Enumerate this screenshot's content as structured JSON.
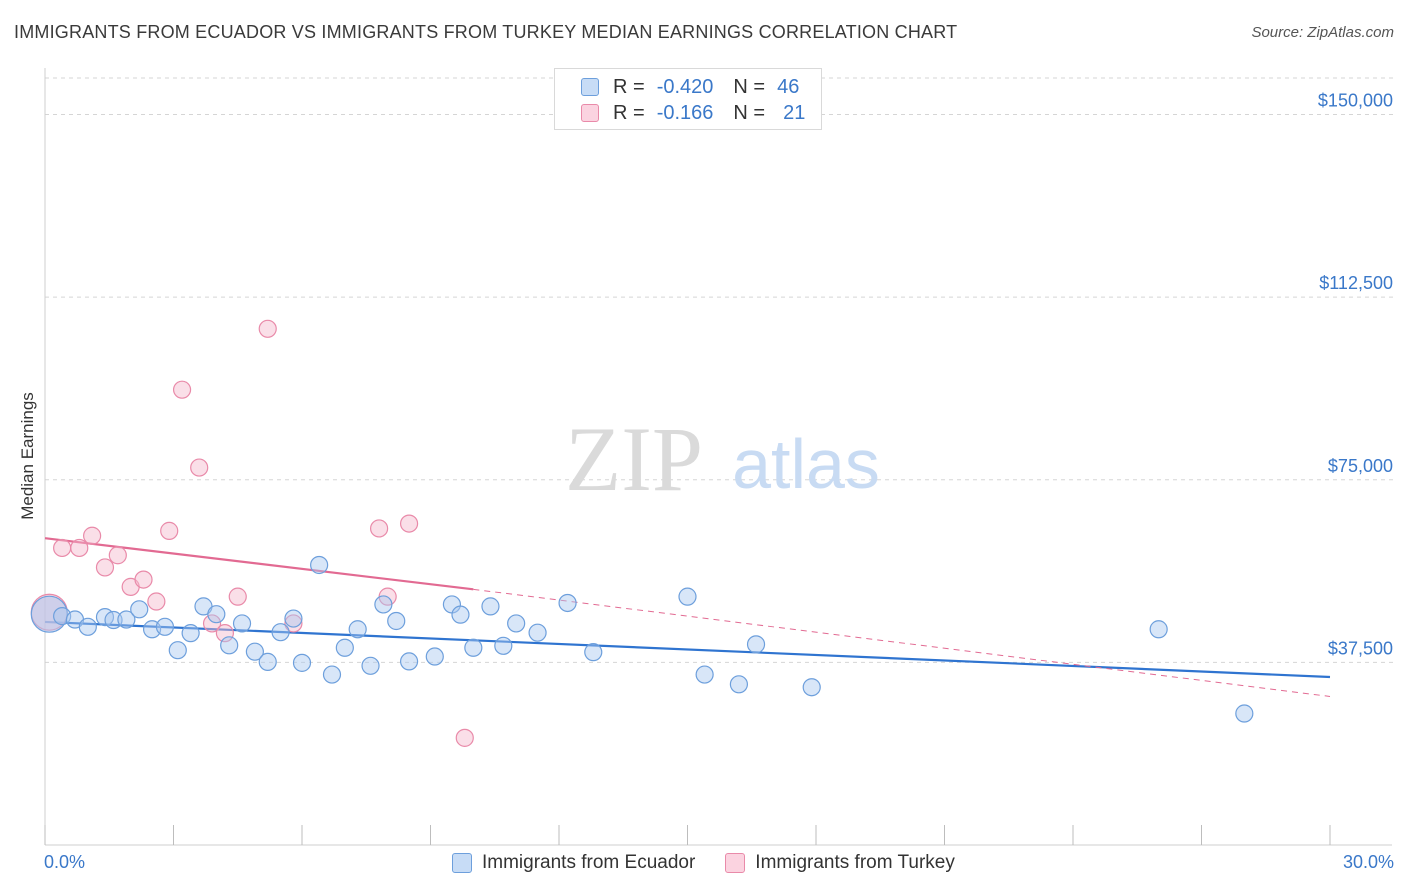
{
  "header": {
    "title": "IMMIGRANTS FROM ECUADOR VS IMMIGRANTS FROM TURKEY MEDIAN EARNINGS CORRELATION CHART",
    "source": "Source: ZipAtlas.com"
  },
  "watermark": {
    "zip": "ZIP",
    "atlas": "atlas"
  },
  "legend": {
    "rows": [
      {
        "r_label": "R =",
        "r_value": "-0.420",
        "n_label": "N =",
        "n_value": "46",
        "color": "#a9c8f0"
      },
      {
        "r_label": "R =",
        "r_value": "-0.166",
        "n_label": "N =",
        "n_value": "21",
        "color": "#f5b8cb"
      }
    ]
  },
  "bottom_legend": {
    "items": [
      {
        "label": "Immigrants from Ecuador",
        "color": "#a9c8f0"
      },
      {
        "label": "Immigrants from Turkey",
        "color": "#f5b8cb"
      }
    ]
  },
  "x_axis_labels": {
    "min": "0.0%",
    "max": "30.0%"
  },
  "colors": {
    "blue_fill": "#a9c8f0",
    "blue_stroke": "#6d9fdc",
    "blue_line": "#2f74d0",
    "pink_fill": "#f5b8cb",
    "pink_stroke": "#e98aa9",
    "pink_line": "#e26a92",
    "axis_text": "#3a78c9",
    "grid": "#d5d5d5"
  },
  "chart_data": {
    "type": "scatter",
    "title": "IMMIGRANTS FROM ECUADOR VS IMMIGRANTS FROM TURKEY MEDIAN EARNINGS CORRELATION CHART",
    "xlabel": "",
    "ylabel": "Median Earnings",
    "xlim": [
      0,
      30
    ],
    "ylim": [
      0,
      157500
    ],
    "y_ticks": [
      {
        "value": 37500,
        "label": "$37,500"
      },
      {
        "value": 75000,
        "label": "$75,000"
      },
      {
        "value": 112500,
        "label": "$112,500"
      },
      {
        "value": 150000,
        "label": "$150,000"
      }
    ],
    "x_ticks": [
      0,
      3,
      6,
      9,
      12,
      15,
      18,
      21,
      24,
      27,
      30
    ],
    "series": [
      {
        "name": "Immigrants from Ecuador",
        "points": [
          [
            0.1,
            47400
          ],
          [
            0.4,
            47000
          ],
          [
            0.7,
            46300
          ],
          [
            1.0,
            44800
          ],
          [
            1.4,
            46800
          ],
          [
            1.6,
            46200
          ],
          [
            1.9,
            46300
          ],
          [
            2.2,
            48400
          ],
          [
            2.5,
            44300
          ],
          [
            2.8,
            44800
          ],
          [
            3.1,
            40000
          ],
          [
            3.4,
            43500
          ],
          [
            3.7,
            49000
          ],
          [
            4.0,
            47400
          ],
          [
            4.3,
            41000
          ],
          [
            4.6,
            45500
          ],
          [
            4.9,
            39700
          ],
          [
            5.2,
            37600
          ],
          [
            5.5,
            43700
          ],
          [
            5.8,
            46500
          ],
          [
            6.0,
            37400
          ],
          [
            6.4,
            57500
          ],
          [
            6.7,
            35000
          ],
          [
            7.0,
            40500
          ],
          [
            7.3,
            44300
          ],
          [
            7.6,
            36800
          ],
          [
            7.9,
            49400
          ],
          [
            8.2,
            46000
          ],
          [
            8.5,
            37700
          ],
          [
            9.1,
            38700
          ],
          [
            9.5,
            49400
          ],
          [
            9.7,
            47300
          ],
          [
            10.0,
            40500
          ],
          [
            10.4,
            49000
          ],
          [
            10.7,
            40900
          ],
          [
            11.0,
            45500
          ],
          [
            11.5,
            43600
          ],
          [
            12.2,
            49700
          ],
          [
            12.8,
            39600
          ],
          [
            15.0,
            51000
          ],
          [
            15.4,
            35000
          ],
          [
            16.2,
            33000
          ],
          [
            16.6,
            41200
          ],
          [
            17.9,
            32400
          ],
          [
            26.0,
            44300
          ],
          [
            28.0,
            27000
          ]
        ]
      },
      {
        "name": "Immigrants from Turkey",
        "points": [
          [
            0.1,
            47800
          ],
          [
            0.4,
            61000
          ],
          [
            0.8,
            61000
          ],
          [
            1.1,
            63500
          ],
          [
            1.4,
            57000
          ],
          [
            1.7,
            59500
          ],
          [
            2.0,
            53000
          ],
          [
            2.3,
            54500
          ],
          [
            2.6,
            50000
          ],
          [
            2.9,
            64500
          ],
          [
            3.2,
            93500
          ],
          [
            3.6,
            77500
          ],
          [
            3.9,
            45500
          ],
          [
            4.2,
            43500
          ],
          [
            4.5,
            51000
          ],
          [
            5.2,
            106000
          ],
          [
            5.8,
            45500
          ],
          [
            7.8,
            65000
          ],
          [
            8.0,
            51000
          ],
          [
            8.5,
            66000
          ],
          [
            9.8,
            22000
          ]
        ]
      }
    ],
    "trendlines": [
      {
        "series": "Immigrants from Ecuador",
        "x": [
          0,
          30
        ],
        "y": [
          45800,
          34500
        ],
        "style": "solid"
      },
      {
        "series": "Immigrants from Turkey",
        "x": [
          0,
          10
        ],
        "y": [
          63000,
          52500
        ],
        "style": "solid"
      },
      {
        "series": "Immigrants from Turkey",
        "x": [
          10,
          30
        ],
        "y": [
          52500,
          30500
        ],
        "style": "dashed"
      }
    ]
  }
}
